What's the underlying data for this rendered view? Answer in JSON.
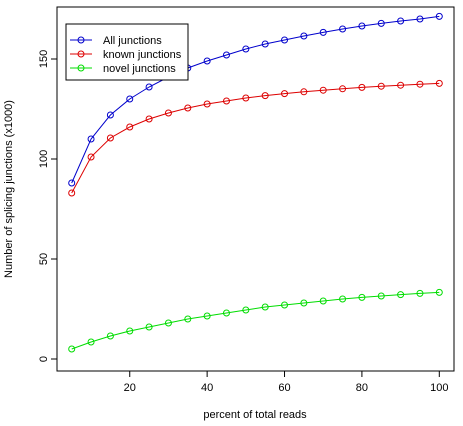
{
  "chart_data": {
    "type": "line",
    "xlabel": "percent of total reads",
    "ylabel": "Number of splicing junctions (x1000)",
    "x": [
      5,
      10,
      15,
      20,
      25,
      30,
      35,
      40,
      45,
      50,
      55,
      60,
      65,
      70,
      75,
      80,
      85,
      90,
      95,
      100
    ],
    "xlim": [
      1.2,
      103.8
    ],
    "ylim": [
      -6,
      176
    ],
    "xticks": [
      20,
      40,
      60,
      80,
      100
    ],
    "yticks": [
      0,
      50,
      100,
      150
    ],
    "grid": false,
    "legend_position": "top-left",
    "series": [
      {
        "name": "All junctions",
        "color": "#0000cc",
        "values": [
          88,
          110,
          122,
          130,
          136,
          141,
          145.5,
          149,
          152,
          155,
          157.5,
          159.5,
          161.5,
          163.3,
          165,
          166.5,
          167.8,
          169,
          170,
          171.3
        ]
      },
      {
        "name": "known junctions",
        "color": "#dd0000",
        "values": [
          83,
          101,
          110.5,
          116,
          120,
          123,
          125.5,
          127.5,
          129,
          130.5,
          131.7,
          132.7,
          133.6,
          134.4,
          135.1,
          135.8,
          136.4,
          136.9,
          137.4,
          137.8
        ]
      },
      {
        "name": "novel junctions",
        "color": "#00dd00",
        "values": [
          5,
          8.5,
          11.5,
          14,
          16,
          18,
          20,
          21.5,
          23,
          24.5,
          26,
          27,
          28,
          29,
          30,
          30.8,
          31.5,
          32.2,
          32.8,
          33.3
        ]
      }
    ]
  }
}
